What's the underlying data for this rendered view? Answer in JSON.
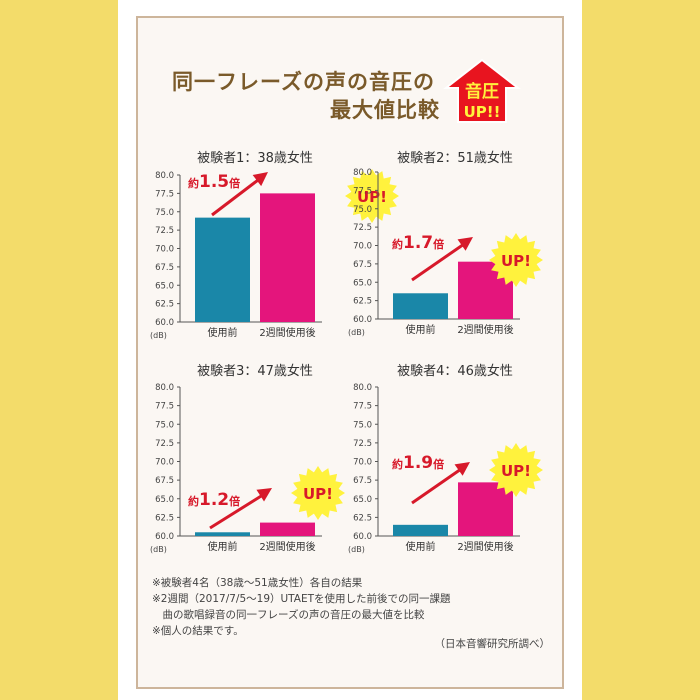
{
  "header": {
    "title_line1": "同一フレーズの声の音圧の",
    "title_line2": "最大値比較",
    "badge_line1": "音圧",
    "badge_line2": "UP!!"
  },
  "footer": {
    "note1": "※被験者4名（38歳〜51歳女性）各自の結果",
    "note2": "※2週間（2017/7/5〜19）UTAETを使用した前後での同一課題",
    "note3": "　曲の歌唱録音の同一フレーズの声の音圧の最大値を比較",
    "note4": "※個人の結果です。",
    "source": "（日本音響研究所調べ）"
  },
  "colors": {
    "before": "#1a87a8",
    "after": "#e4157c",
    "accent_red": "#d7192a",
    "badge_yellow": "#fff23d",
    "title_brown": "#7a5a2a"
  },
  "chart_data": [
    {
      "type": "bar",
      "title": "被験者1：38歳女性",
      "categories": [
        "使用前",
        "2週間使用後"
      ],
      "values": [
        74.2,
        77.5
      ],
      "ylabel": "(dB)",
      "ylim": [
        60,
        80
      ],
      "yticks": [
        "60.0",
        "62.5",
        "65.0",
        "67.5",
        "70.0",
        "72.5",
        "75.0",
        "77.5",
        "80.0"
      ],
      "annotation": {
        "prefix": "約",
        "value": "1.5",
        "suffix": "倍",
        "badge": "UP!"
      }
    },
    {
      "type": "bar",
      "title": "被験者2：51歳女性",
      "categories": [
        "使用前",
        "2週間使用後"
      ],
      "values": [
        63.5,
        67.8
      ],
      "ylabel": "(dB)",
      "ylim": [
        60,
        80
      ],
      "yticks": [
        "60.0",
        "62.5",
        "65.0",
        "67.5",
        "70.0",
        "72.5",
        "75.0",
        "77.5",
        "80.0"
      ],
      "annotation": {
        "prefix": "約",
        "value": "1.7",
        "suffix": "倍",
        "badge": "UP!"
      }
    },
    {
      "type": "bar",
      "title": "被験者3：47歳女性",
      "categories": [
        "使用前",
        "2週間使用後"
      ],
      "values": [
        60.5,
        61.8
      ],
      "ylabel": "(dB)",
      "ylim": [
        60,
        80
      ],
      "yticks": [
        "60.0",
        "62.5",
        "65.0",
        "67.5",
        "70.0",
        "72.5",
        "75.0",
        "77.5",
        "80.0"
      ],
      "annotation": {
        "prefix": "約",
        "value": "1.2",
        "suffix": "倍",
        "badge": "UP!"
      }
    },
    {
      "type": "bar",
      "title": "被験者4：46歳女性",
      "categories": [
        "使用前",
        "2週間使用後"
      ],
      "values": [
        61.5,
        67.2
      ],
      "ylabel": "(dB)",
      "ylim": [
        60,
        80
      ],
      "yticks": [
        "60.0",
        "62.5",
        "65.0",
        "67.5",
        "70.0",
        "72.5",
        "75.0",
        "77.5",
        "80.0"
      ],
      "annotation": {
        "prefix": "約",
        "value": "1.9",
        "suffix": "倍",
        "badge": "UP!"
      }
    }
  ]
}
